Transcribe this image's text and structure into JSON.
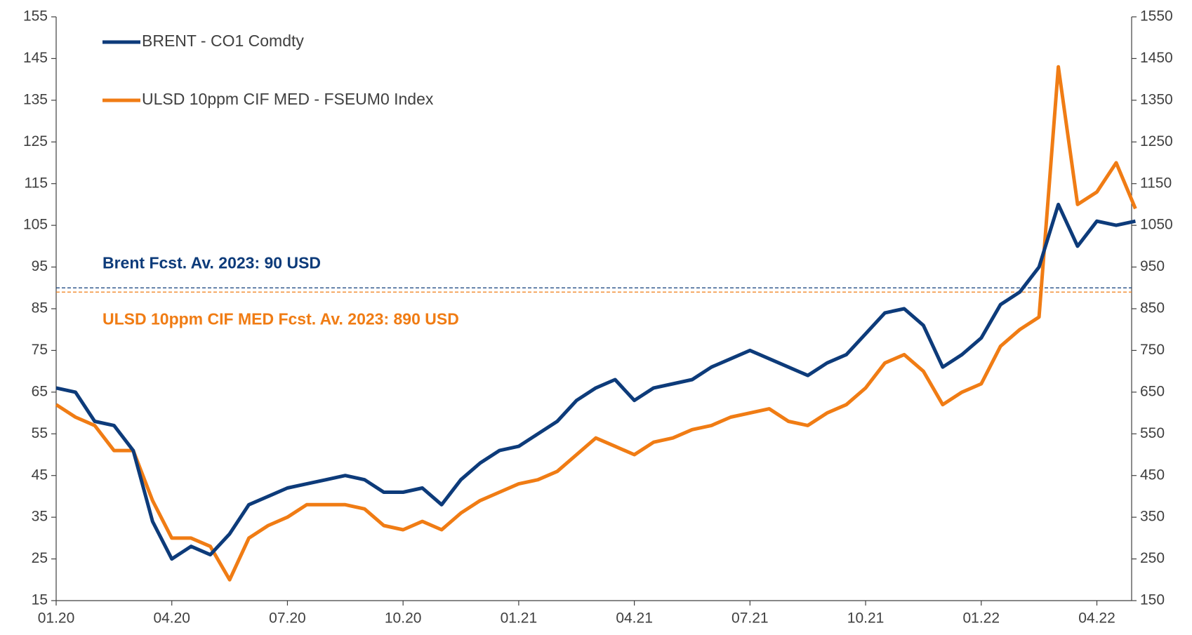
{
  "chart_data": {
    "type": "line",
    "categories": [
      "01.20",
      null,
      null,
      null,
      null,
      null,
      "04.20",
      null,
      null,
      null,
      null,
      null,
      "07.20",
      null,
      null,
      null,
      null,
      null,
      "10.20",
      null,
      null,
      null,
      null,
      null,
      "01.21",
      null,
      null,
      null,
      null,
      null,
      "04.21",
      null,
      null,
      null,
      null,
      null,
      "07.21",
      null,
      null,
      null,
      null,
      null,
      "10.21",
      null,
      null,
      null,
      null,
      null,
      "01.22",
      null,
      null,
      null,
      null,
      null,
      "04.22",
      null,
      null
    ],
    "series": [
      {
        "name": "BRENT - CO1 Comdty",
        "color": "#0d3b7a",
        "axis": "y",
        "values": [
          66,
          65,
          58,
          57,
          51,
          34,
          25,
          28,
          26,
          31,
          38,
          40,
          42,
          43,
          44,
          45,
          44,
          41,
          41,
          42,
          38,
          44,
          48,
          51,
          52,
          55,
          58,
          63,
          66,
          68,
          63,
          66,
          67,
          68,
          71,
          73,
          75,
          73,
          71,
          69,
          72,
          74,
          79,
          84,
          85,
          81,
          71,
          74,
          78,
          86,
          89,
          95,
          110,
          100,
          106,
          105,
          106
        ]
      },
      {
        "name": "ULSD 10ppm CIF MED - FSEUM0 Index",
        "color": "#f07c14",
        "axis": "y2",
        "values": [
          620,
          590,
          570,
          510,
          510,
          390,
          300,
          300,
          280,
          200,
          300,
          330,
          350,
          380,
          380,
          380,
          370,
          330,
          320,
          340,
          320,
          360,
          390,
          410,
          430,
          440,
          460,
          500,
          540,
          520,
          500,
          530,
          540,
          560,
          570,
          590,
          600,
          610,
          580,
          570,
          600,
          620,
          660,
          720,
          740,
          700,
          620,
          650,
          670,
          760,
          800,
          830,
          1430,
          1100,
          1130,
          1200,
          1090
        ]
      }
    ],
    "reference_lines": [
      {
        "value": 90,
        "axis": "y",
        "color": "#0d3b7a",
        "label": "Brent Fcst. Av. 2023: 90 USD"
      },
      {
        "value": 890,
        "axis": "y2",
        "color": "#f07c14",
        "label": "ULSD 10ppm CIF MED Fcst. Av. 2023: 890 USD"
      }
    ],
    "ylim": [
      15,
      155
    ],
    "yticks": [
      15,
      25,
      35,
      45,
      55,
      65,
      75,
      85,
      95,
      105,
      115,
      125,
      135,
      145,
      155
    ],
    "y2lim": [
      150,
      1550
    ],
    "y2ticks": [
      150,
      250,
      350,
      450,
      550,
      650,
      750,
      850,
      950,
      1050,
      1150,
      1250,
      1350,
      1450,
      1550
    ],
    "legend": "top-left",
    "grid": false
  }
}
